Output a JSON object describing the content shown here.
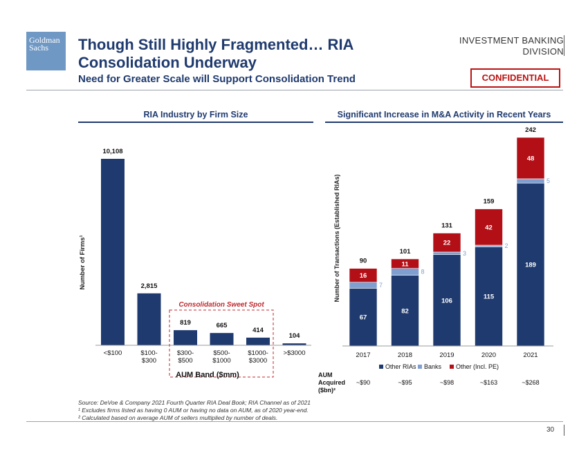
{
  "header": {
    "logo_line1": "Goldman",
    "logo_line2": "Sachs",
    "title": "Though Still Highly Fragmented… RIA Consolidation Underway",
    "subtitle": "Need for Greater Scale will Support Consolidation Trend",
    "division_line1": "INVESTMENT BANKING",
    "division_line2": "DIVISION",
    "confidential": "CONFIDENTIAL"
  },
  "chart_data": [
    {
      "type": "bar",
      "title": "RIA Industry by Firm Size",
      "xlabel": "AUM Band ($mm)",
      "ylabel": "Number of Firms¹",
      "categories": [
        [
          "<$100"
        ],
        [
          "$100-",
          "$300"
        ],
        [
          "$300-",
          "$500"
        ],
        [
          "$500-",
          "$1000"
        ],
        [
          "$1000-",
          "$3000"
        ],
        [
          ">$3000"
        ]
      ],
      "values": [
        10108,
        2815,
        819,
        665,
        414,
        104
      ],
      "value_labels": [
        "10,108",
        "2,815",
        "819",
        "665",
        "414",
        "104"
      ],
      "ylim": [
        0,
        10108
      ],
      "annotation": "Consolidation Sweet Spot",
      "color": "#1f3a6e"
    },
    {
      "type": "bar",
      "stacked": true,
      "title": "Significant Increase in M&A Activity in Recent Years",
      "ylabel": "Number of Transactions (Established RIAs)",
      "categories": [
        "2017",
        "2018",
        "2019",
        "2020",
        "2021"
      ],
      "series": [
        {
          "name": "Other RIAs",
          "values": [
            67,
            82,
            106,
            115,
            189
          ],
          "color": "#1f3a6e"
        },
        {
          "name": "Banks",
          "values": [
            7,
            8,
            3,
            2,
            5
          ],
          "color": "#7f9fd0"
        },
        {
          "name": "Other (Incl. PE)",
          "values": [
            16,
            11,
            22,
            42,
            48
          ],
          "color": "#b30f16"
        }
      ],
      "totals": [
        90,
        101,
        131,
        159,
        242
      ],
      "ylim": [
        0,
        242
      ],
      "aum_label": [
        "AUM",
        "Acquired",
        "($bn)²"
      ],
      "aum_values": [
        "~$90",
        "~$95",
        "~$98",
        "~$163",
        "~$268"
      ]
    }
  ],
  "footnotes": [
    "Source: DeVoe & Company 2021 Fourth Quarter RIA Deal Book; RIA Channel as of 2021",
    "¹ Excludes firms listed as having 0 AUM or having no data on AUM, as of 2020 year-end.",
    "² Calculated based on average AUM of sellers multiplied by number of deals."
  ],
  "page_number": "30"
}
